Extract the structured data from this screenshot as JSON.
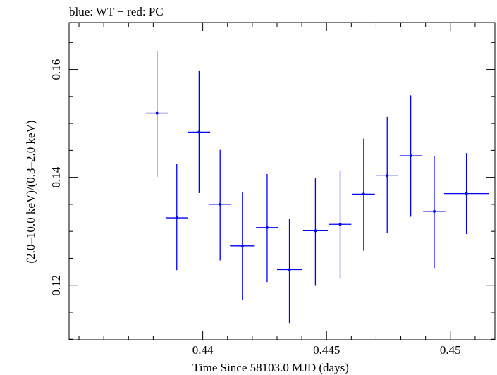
{
  "chart_data": {
    "type": "scatter",
    "title": "blue: WT − red: PC",
    "xlabel": "Time Since 58103.0 MJD (days)",
    "ylabel": "(2.0–10.0 keV)/(0.3–2.0 keV)",
    "xlim": [
      0.4346,
      0.4518
    ],
    "ylim": [
      0.1099,
      0.1687
    ],
    "x_ticks": [
      0.44,
      0.445,
      0.45
    ],
    "x_tick_labels": [
      "0.44",
      "0.445",
      "0.45"
    ],
    "y_ticks": [
      0.12,
      0.14,
      0.16
    ],
    "y_tick_labels": [
      "0.12",
      "0.14",
      "0.16"
    ],
    "grid": false,
    "color": "#0000ff",
    "series": [
      {
        "points": [
          {
            "x": 0.43815,
            "y": 0.1519,
            "xerr": 0.00045,
            "ylo": 0.1401,
            "yhi": 0.1634
          },
          {
            "x": 0.43895,
            "y": 0.1325,
            "xerr": 0.00045,
            "ylo": 0.1228,
            "yhi": 0.1425
          },
          {
            "x": 0.43985,
            "y": 0.1484,
            "xerr": 0.00045,
            "ylo": 0.1371,
            "yhi": 0.1597
          },
          {
            "x": 0.4407,
            "y": 0.135,
            "xerr": 0.00045,
            "ylo": 0.1246,
            "yhi": 0.1451
          },
          {
            "x": 0.4416,
            "y": 0.1273,
            "xerr": 0.0005,
            "ylo": 0.1172,
            "yhi": 0.1372
          },
          {
            "x": 0.4426,
            "y": 0.1307,
            "xerr": 0.00045,
            "ylo": 0.1206,
            "yhi": 0.1406
          },
          {
            "x": 0.4435,
            "y": 0.1229,
            "xerr": 0.0005,
            "ylo": 0.113,
            "yhi": 0.1323
          },
          {
            "x": 0.44455,
            "y": 0.1301,
            "xerr": 0.0005,
            "ylo": 0.1199,
            "yhi": 0.1398
          },
          {
            "x": 0.44555,
            "y": 0.1313,
            "xerr": 0.00045,
            "ylo": 0.1212,
            "yhi": 0.1413
          },
          {
            "x": 0.4465,
            "y": 0.1369,
            "xerr": 0.00045,
            "ylo": 0.1264,
            "yhi": 0.1472
          },
          {
            "x": 0.44745,
            "y": 0.1403,
            "xerr": 0.00045,
            "ylo": 0.1297,
            "yhi": 0.1512
          },
          {
            "x": 0.4484,
            "y": 0.144,
            "xerr": 0.00045,
            "ylo": 0.1327,
            "yhi": 0.1552
          },
          {
            "x": 0.44935,
            "y": 0.1337,
            "xerr": 0.00045,
            "ylo": 0.1232,
            "yhi": 0.144
          },
          {
            "x": 0.45065,
            "y": 0.137,
            "xerr": 0.0009,
            "ylo": 0.1295,
            "yhi": 0.1445
          }
        ]
      }
    ]
  }
}
